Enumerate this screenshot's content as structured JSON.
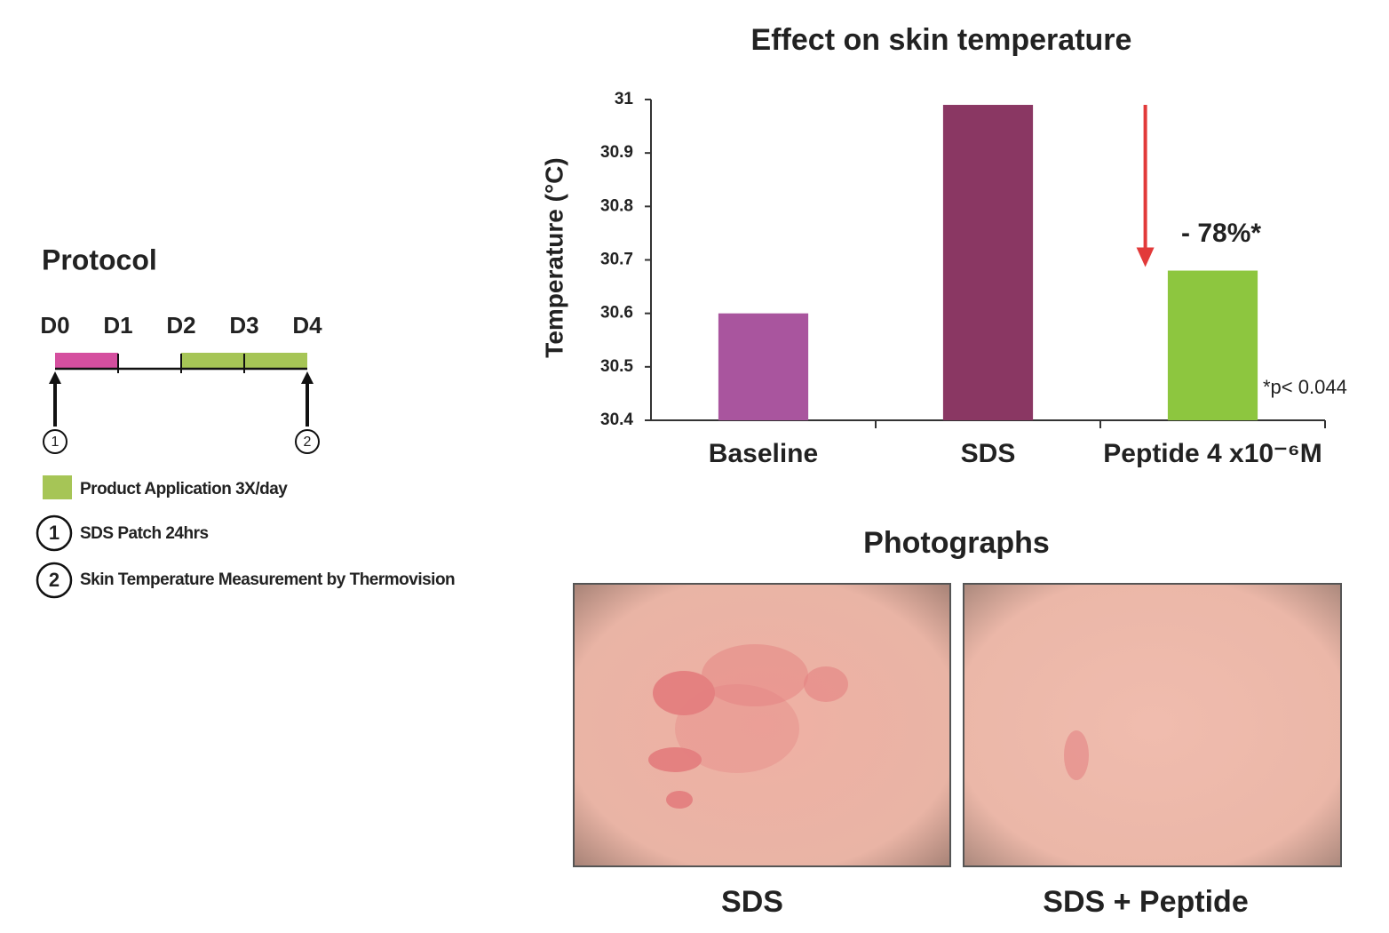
{
  "chart_data": {
    "type": "bar",
    "title": "Effect on skin temperature",
    "y_label": "Temperature (°C)",
    "categories": [
      "Baseline",
      "SDS",
      "Peptide  4 x10⁻⁶M"
    ],
    "values": [
      30.6,
      30.99,
      30.68
    ],
    "colors": [
      "#a9559e",
      "#8a3763",
      "#8dc63f"
    ],
    "ylim": [
      30.4,
      31
    ],
    "yticks": [
      30.4,
      30.5,
      30.6,
      30.7,
      30.8,
      30.9,
      31
    ],
    "annotation": "- 78%*",
    "footnote": "*p< 0.044"
  },
  "protocol": {
    "title": "Protocol",
    "days": [
      "D0",
      "D1",
      "D2",
      "D3",
      "D4"
    ],
    "markers": [
      "1",
      "2"
    ],
    "legend": [
      {
        "symbol": "",
        "text": "Product Application 3X/day"
      },
      {
        "symbol": "1",
        "text": "SDS Patch 24hrs"
      },
      {
        "symbol": "2",
        "text": "Skin Temperature Measurement by Thermovision"
      }
    ]
  },
  "photographs": {
    "title": "Photographs",
    "captions": [
      "SDS",
      "SDS + Peptide"
    ]
  }
}
